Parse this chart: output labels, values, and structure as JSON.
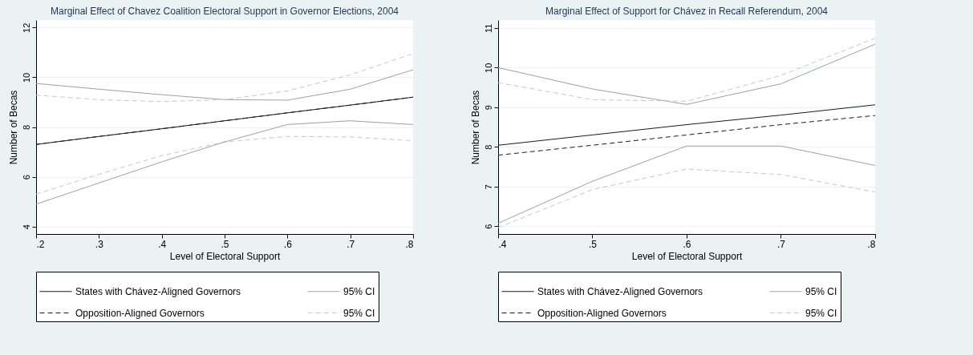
{
  "chart_data": [
    {
      "type": "line",
      "title": "Marginal Effect of Chavez Coalition Electoral Support in Governor Elections, 2004",
      "xlabel": "Level of Electoral Support",
      "ylabel": "Number of Becas",
      "x": [
        0.2,
        0.3,
        0.4,
        0.5,
        0.6,
        0.7,
        0.8
      ],
      "xlim": [
        0.2,
        0.8
      ],
      "xticks": [
        {
          "value": 0.2,
          "label": ".2"
        },
        {
          "value": 0.3,
          "label": ".3"
        },
        {
          "value": 0.4,
          "label": ".4"
        },
        {
          "value": 0.5,
          "label": ".5"
        },
        {
          "value": 0.6,
          "label": ".6"
        },
        {
          "value": 0.7,
          "label": ".7"
        },
        {
          "value": 0.8,
          "label": ".8"
        }
      ],
      "ylim": [
        3.7,
        12.3
      ],
      "yticks": [
        4,
        6,
        8,
        10,
        12
      ],
      "grid": "y",
      "legend": "bottom",
      "series": [
        {
          "name": "States with Chávez-Aligned Governors",
          "color": "#1a1a1a",
          "line_style": "solid",
          "values": [
            7.3,
            7.62,
            7.93,
            8.25,
            8.57,
            8.88,
            9.2
          ]
        },
        {
          "name": "95% CI",
          "color": "#a0a0a0",
          "line_style": "solid",
          "values": [
            9.75,
            9.52,
            9.3,
            9.1,
            9.08,
            9.52,
            10.3
          ]
        },
        {
          "name": "Opposition-Aligned Governors",
          "color": "#1a1a1a",
          "line_style": "dashed",
          "values": [
            7.3,
            7.62,
            7.93,
            8.25,
            8.57,
            8.88,
            9.2
          ]
        },
        {
          "name": "95% CI",
          "color": "#c8c8c8",
          "line_style": "dashed",
          "values": [
            5.3,
            6.1,
            6.85,
            7.4,
            7.62,
            7.6,
            7.45
          ]
        },
        {
          "color": "#a0a0a0",
          "line_style": "solid",
          "values": [
            4.9,
            5.75,
            6.6,
            7.4,
            8.1,
            8.25,
            8.1
          ]
        },
        {
          "color": "#c8c8c8",
          "line_style": "dashed",
          "values": [
            9.28,
            9.1,
            9.02,
            9.1,
            9.45,
            10.1,
            10.95
          ]
        }
      ]
    },
    {
      "type": "line",
      "title": "Marginal Effect of Support for Chávez in Recall Referendum, 2004",
      "xlabel": "Level of Electoral Support",
      "ylabel": "Number of Becas",
      "x": [
        0.4,
        0.5,
        0.6,
        0.7,
        0.8
      ],
      "xlim": [
        0.4,
        0.8
      ],
      "xticks": [
        {
          "value": 0.4,
          "label": ".4"
        },
        {
          "value": 0.5,
          "label": ".5"
        },
        {
          "value": 0.6,
          "label": ".6"
        },
        {
          "value": 0.7,
          "label": ".7"
        },
        {
          "value": 0.8,
          "label": ".8"
        }
      ],
      "ylim": [
        5.8,
        11.2
      ],
      "yticks": [
        6,
        7,
        8,
        9,
        10,
        11
      ],
      "grid": "y",
      "legend": "bottom",
      "series": [
        {
          "name": "States with Chávez-Aligned Governors",
          "color": "#1a1a1a",
          "line_style": "solid",
          "values": [
            8.04,
            8.3,
            8.56,
            8.8,
            9.06
          ]
        },
        {
          "name": "95% CI",
          "color": "#a0a0a0",
          "line_style": "solid",
          "values": [
            10.0,
            9.46,
            9.07,
            9.59,
            10.59
          ]
        },
        {
          "name": "Opposition-Aligned Governors",
          "color": "#1a1a1a",
          "line_style": "dashed",
          "values": [
            7.79,
            8.04,
            8.3,
            8.56,
            8.79
          ]
        },
        {
          "name": "95% CI",
          "color": "#c8c8c8",
          "line_style": "dashed",
          "values": [
            9.62,
            9.19,
            9.15,
            9.8,
            10.74
          ]
        },
        {
          "color": "#a0a0a0",
          "line_style": "solid",
          "values": [
            6.07,
            7.13,
            8.02,
            8.02,
            7.53
          ]
        },
        {
          "color": "#c8c8c8",
          "line_style": "dashed",
          "values": [
            5.96,
            6.92,
            7.44,
            7.3,
            6.86
          ]
        }
      ]
    }
  ]
}
